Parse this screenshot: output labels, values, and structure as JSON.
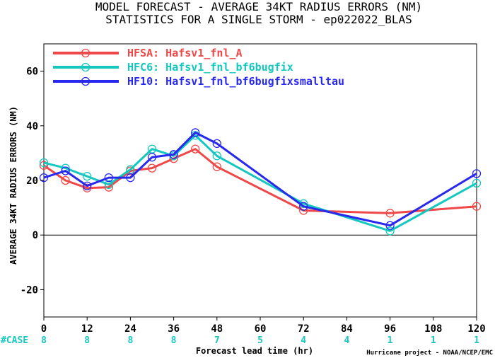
{
  "chart_data": {
    "type": "line",
    "title": "MODEL FORECAST - AVERAGE 34KT RADIUS ERRORS (NM)",
    "subtitle": "STATISTICS FOR A SINGLE STORM - ep022022_BLAS",
    "xlabel": "Forecast lead time (hr)",
    "ylabel": "AVERAGE 34KT RADIUS ERRORS (NM)",
    "credit": "Hurricane project - NOAA/NCEP/EMC",
    "xlim": [
      0,
      120
    ],
    "ylim": [
      -30,
      70
    ],
    "x_ticks": [
      0,
      12,
      24,
      36,
      48,
      60,
      72,
      84,
      96,
      108,
      120
    ],
    "y_ticks": [
      -20,
      0,
      20,
      40,
      60
    ],
    "legend_position": "top-left",
    "series": [
      {
        "name": "HFSA: Hafsv1_fnl_A",
        "color": "#f04848",
        "x": [
          0,
          6,
          12,
          18,
          24,
          30,
          36,
          42,
          48,
          72,
          96,
          120
        ],
        "y": [
          25.5,
          20,
          17.2,
          17.5,
          23.5,
          24.5,
          28,
          31.5,
          25,
          9,
          8,
          10.5
        ]
      },
      {
        "name": "HFC6: Hafsv1_fnl_bf6bugfix",
        "color": "#14c8c0",
        "x": [
          0,
          6,
          12,
          18,
          24,
          30,
          36,
          42,
          48,
          72,
          96,
          120
        ],
        "y": [
          26.5,
          24.5,
          21.5,
          18.5,
          24,
          31.5,
          29,
          36.5,
          29,
          11.5,
          1.5,
          19
        ]
      },
      {
        "name": "HF10: Hafsv1_fnl_bf6bugfixsmalltau",
        "color": "#2828ee",
        "x": [
          0,
          6,
          12,
          18,
          24,
          30,
          36,
          42,
          48,
          72,
          96,
          120
        ],
        "y": [
          21,
          23.5,
          18,
          21,
          21,
          28.5,
          29.5,
          37.5,
          33.5,
          10.5,
          3.5,
          22.5
        ]
      }
    ],
    "cases": {
      "label": "#CASE",
      "x": [
        0,
        12,
        24,
        36,
        48,
        60,
        72,
        84,
        96,
        108,
        120
      ],
      "values": [
        "8",
        "8",
        "8",
        "8",
        "7",
        "5",
        "4",
        "4",
        "1",
        "1",
        "1"
      ]
    }
  }
}
